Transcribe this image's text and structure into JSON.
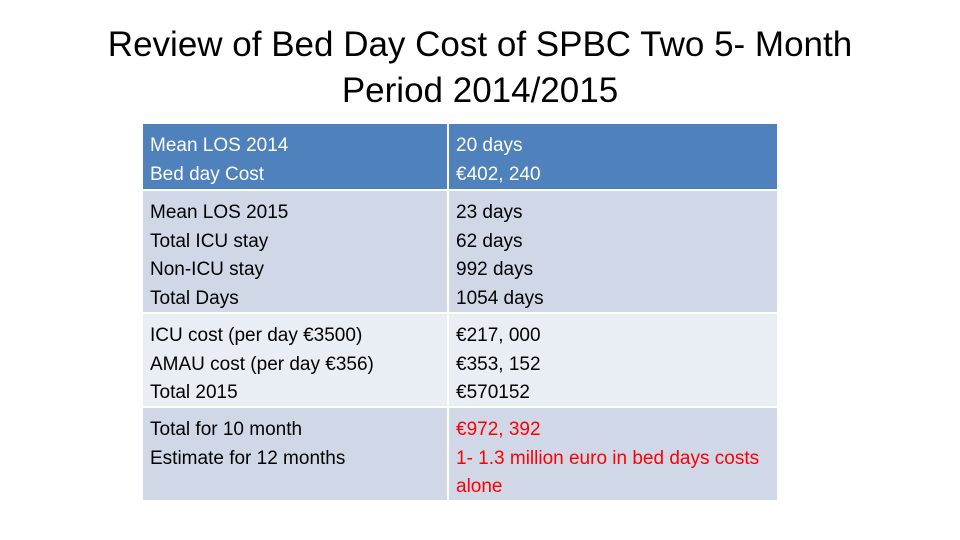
{
  "title": {
    "line1": "Review of Bed Day Cost of SPBC Two 5- Month",
    "line2": "Period 2014/2015"
  },
  "table": {
    "rows": [
      {
        "left": [
          "Mean LOS 2014",
          "Bed day Cost"
        ],
        "right": [
          "20 days",
          "€402, 240"
        ]
      },
      {
        "left": [
          "Mean  LOS 2015",
          "Total ICU stay",
          "Non-ICU stay",
          "Total  Days"
        ],
        "right": [
          "23 days",
          "62 days",
          "992 days",
          "1054 days"
        ]
      },
      {
        "left": [
          "ICU cost  (per day €3500)",
          "AMAU cost  (per day €356)",
          "Total 2015"
        ],
        "right": [
          "€217, 000",
          "€353, 152",
          "€570152"
        ]
      },
      {
        "left": [
          "Total for 10 month",
          "Estimate for  12 months"
        ],
        "right": [
          "€972, 392",
          "1- 1.3 million euro in bed days costs alone"
        ]
      }
    ]
  },
  "colors": {
    "header_bg": "#4f81bd",
    "row_dark": "#d0d8e8",
    "row_light": "#e9edf4",
    "highlight_text": "#ff0000"
  }
}
